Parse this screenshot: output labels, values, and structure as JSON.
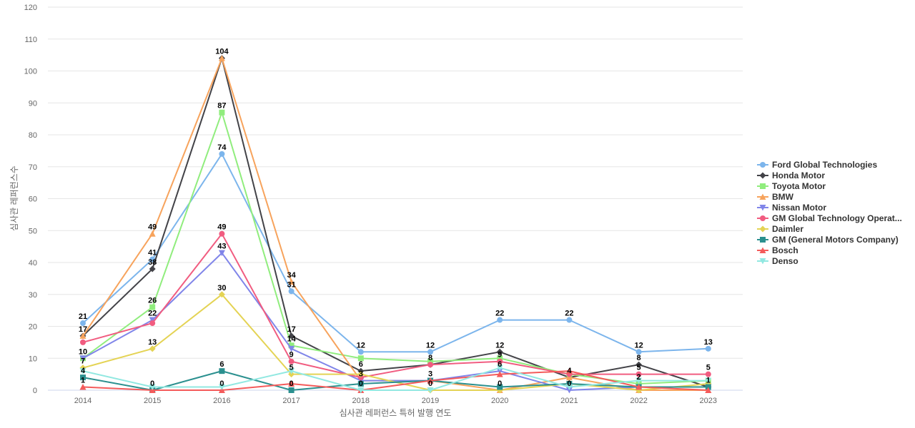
{
  "chart_data": {
    "type": "line",
    "title": "",
    "xlabel": "심사관 레퍼런스 특허 발행 연도",
    "ylabel": "심사관 레퍼런스수",
    "ylim": [
      0,
      120
    ],
    "yticks": [
      0,
      10,
      20,
      30,
      40,
      50,
      60,
      70,
      80,
      90,
      100,
      110,
      120
    ],
    "x": [
      "2014",
      "2015",
      "2016",
      "2017",
      "2018",
      "2019",
      "2020",
      "2021",
      "2022",
      "2023"
    ],
    "grid": true,
    "legend_position": "right",
    "series": [
      {
        "name": "Ford Global Technologies",
        "color": "#7cb5ec",
        "marker": "circle",
        "values": [
          21,
          41,
          74,
          31,
          12,
          12,
          22,
          22,
          12,
          13
        ]
      },
      {
        "name": "Honda Motor",
        "color": "#434348",
        "marker": "diamond",
        "values": [
          17,
          38,
          104,
          17,
          6,
          8,
          12,
          4,
          8,
          1
        ]
      },
      {
        "name": "Toyota Motor",
        "color": "#90ed7d",
        "marker": "square",
        "values": [
          10,
          26,
          87,
          14,
          10,
          9,
          10,
          5,
          2,
          3
        ]
      },
      {
        "name": "BMW",
        "color": "#f7a35c",
        "marker": "triangle",
        "values": [
          17,
          49,
          104,
          34,
          3,
          3,
          0,
          4,
          0,
          0
        ]
      },
      {
        "name": "Nissan Motor",
        "color": "#8085e9",
        "marker": "triangle-down",
        "values": [
          10,
          22,
          43,
          13,
          3,
          3,
          6,
          0,
          1,
          1
        ]
      },
      {
        "name": "GM Global Technology Operat...",
        "color": "#f15c80",
        "marker": "circle",
        "values": [
          15,
          21,
          49,
          9,
          4,
          8,
          9,
          5,
          5,
          5
        ]
      },
      {
        "name": "Daimler",
        "color": "#e4d354",
        "marker": "diamond",
        "values": [
          7,
          13,
          30,
          5,
          5,
          0,
          0,
          2,
          0,
          2
        ]
      },
      {
        "name": "GM (General Motors Company)",
        "color": "#2b908f",
        "marker": "square",
        "values": [
          4,
          0,
          6,
          0,
          2,
          3,
          1,
          2,
          1,
          1
        ]
      },
      {
        "name": "Bosch",
        "color": "#f45b5b",
        "marker": "triangle",
        "values": [
          1,
          0,
          0,
          2,
          0,
          3,
          5,
          6,
          1,
          0
        ]
      },
      {
        "name": "Denso",
        "color": "#91e8e1",
        "marker": "triangle-down",
        "values": [
          6,
          1,
          1,
          6,
          0,
          0,
          7,
          1,
          3,
          3
        ]
      }
    ],
    "data_labels": [
      {
        "x": "2014",
        "y": 21,
        "text": "21"
      },
      {
        "x": "2014",
        "y": 17,
        "text": "17"
      },
      {
        "x": "2014",
        "y": 10,
        "text": "10"
      },
      {
        "x": "2014",
        "y": 7,
        "text": "7"
      },
      {
        "x": "2014",
        "y": 4,
        "text": "4"
      },
      {
        "x": "2014",
        "y": 1,
        "text": "1"
      },
      {
        "x": "2015",
        "y": 49,
        "text": "49"
      },
      {
        "x": "2015",
        "y": 41,
        "text": "41"
      },
      {
        "x": "2015",
        "y": 38,
        "text": "38"
      },
      {
        "x": "2015",
        "y": 26,
        "text": "26"
      },
      {
        "x": "2015",
        "y": 22,
        "text": "22"
      },
      {
        "x": "2015",
        "y": 13,
        "text": "13"
      },
      {
        "x": "2015",
        "y": 0,
        "text": "0"
      },
      {
        "x": "2016",
        "y": 104,
        "text": "104"
      },
      {
        "x": "2016",
        "y": 87,
        "text": "87"
      },
      {
        "x": "2016",
        "y": 74,
        "text": "74"
      },
      {
        "x": "2016",
        "y": 49,
        "text": "49"
      },
      {
        "x": "2016",
        "y": 43,
        "text": "43"
      },
      {
        "x": "2016",
        "y": 30,
        "text": "30"
      },
      {
        "x": "2016",
        "y": 6,
        "text": "6"
      },
      {
        "x": "2016",
        "y": 0,
        "text": "0"
      },
      {
        "x": "2017",
        "y": 34,
        "text": "34"
      },
      {
        "x": "2017",
        "y": 31,
        "text": "31"
      },
      {
        "x": "2017",
        "y": 17,
        "text": "17"
      },
      {
        "x": "2017",
        "y": 14,
        "text": "14"
      },
      {
        "x": "2017",
        "y": 9,
        "text": "9"
      },
      {
        "x": "2017",
        "y": 5,
        "text": "5"
      },
      {
        "x": "2017",
        "y": 0,
        "text": "0"
      },
      {
        "x": "2018",
        "y": 12,
        "text": "12"
      },
      {
        "x": "2018",
        "y": 6,
        "text": "6"
      },
      {
        "x": "2018",
        "y": 3,
        "text": "3"
      },
      {
        "x": "2018",
        "y": 0,
        "text": "0"
      },
      {
        "x": "2019",
        "y": 12,
        "text": "12"
      },
      {
        "x": "2019",
        "y": 8,
        "text": "8"
      },
      {
        "x": "2019",
        "y": 3,
        "text": "3"
      },
      {
        "x": "2019",
        "y": 0,
        "text": "0"
      },
      {
        "x": "2020",
        "y": 22,
        "text": "22"
      },
      {
        "x": "2020",
        "y": 12,
        "text": "12"
      },
      {
        "x": "2020",
        "y": 9,
        "text": "9"
      },
      {
        "x": "2020",
        "y": 6,
        "text": "6"
      },
      {
        "x": "2020",
        "y": 0,
        "text": "0"
      },
      {
        "x": "2021",
        "y": 22,
        "text": "22"
      },
      {
        "x": "2021",
        "y": 4,
        "text": "4"
      },
      {
        "x": "2021",
        "y": 0,
        "text": "0"
      },
      {
        "x": "2022",
        "y": 12,
        "text": "12"
      },
      {
        "x": "2022",
        "y": 8,
        "text": "8"
      },
      {
        "x": "2022",
        "y": 5,
        "text": "5"
      },
      {
        "x": "2022",
        "y": 2,
        "text": "2"
      },
      {
        "x": "2023",
        "y": 13,
        "text": "13"
      },
      {
        "x": "2023",
        "y": 5,
        "text": "5"
      },
      {
        "x": "2023",
        "y": 1,
        "text": "1"
      }
    ]
  }
}
